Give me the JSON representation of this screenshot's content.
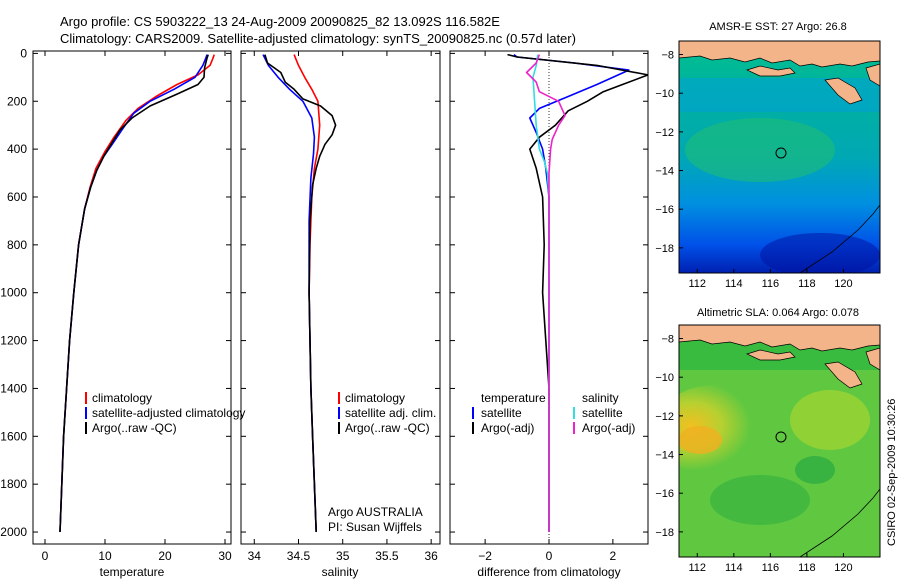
{
  "header": {
    "line1": "Argo profile: CS 5903222_13 24-Aug-2009 20090825_82 13.092S 116.582E",
    "line2": "Climatology: CARS2009. Satellite-adjusted climatology: synTS_20090825.nc (0.57d later)"
  },
  "footer": {
    "credit1": "Argo AUSTRALIA",
    "credit2": "PI: Susan Wijffels",
    "stamp": "CSIRO 02-Sep-2009 10:30:26"
  },
  "colors": {
    "red": "#ff0000",
    "blue": "#0000ff",
    "black": "#000000",
    "cyan": "#33dddd",
    "magenta": "#ee22cc",
    "land": "#f4b48a"
  },
  "chart_data": [
    {
      "id": "temperature",
      "type": "line",
      "xlabel": "temperature",
      "ylabel": "",
      "xlim": [
        -2,
        31
      ],
      "ylim": [
        2050,
        -10
      ],
      "xticks": [
        0,
        10,
        20,
        30
      ],
      "yticks": [
        0,
        200,
        400,
        600,
        800,
        1000,
        1200,
        1400,
        1600,
        1800,
        2000
      ],
      "legend": [
        "climatology",
        "satellite-adjusted climatology",
        "Argo(..raw -QC)"
      ],
      "series": [
        {
          "name": "climatology",
          "color": "red",
          "points": [
            [
              28.2,
              5
            ],
            [
              28,
              20
            ],
            [
              27.5,
              50
            ],
            [
              25.5,
              90
            ],
            [
              22,
              130
            ],
            [
              18.5,
              180
            ],
            [
              15.5,
              230
            ],
            [
              13.5,
              280
            ],
            [
              11.5,
              350
            ],
            [
              10,
              410
            ],
            [
              8.5,
              480
            ],
            [
              7.5,
              560
            ],
            [
              6.6,
              650
            ],
            [
              5.6,
              800
            ],
            [
              4.8,
              1000
            ],
            [
              4.1,
              1200
            ],
            [
              3.6,
              1400
            ],
            [
              3.1,
              1600
            ],
            [
              2.8,
              1800
            ],
            [
              2.5,
              2000
            ]
          ]
        },
        {
          "name": "satellite-adjusted climatology",
          "color": "blue",
          "points": [
            [
              27,
              5
            ],
            [
              26.8,
              20
            ],
            [
              26.3,
              50
            ],
            [
              25,
              100
            ],
            [
              21.5,
              150
            ],
            [
              17.5,
              200
            ],
            [
              14.8,
              250
            ],
            [
              12.8,
              320
            ],
            [
              11.2,
              380
            ],
            [
              9.8,
              430
            ],
            [
              8.6,
              490
            ],
            [
              7.6,
              560
            ],
            [
              6.6,
              650
            ],
            [
              5.6,
              800
            ],
            [
              4.8,
              1000
            ],
            [
              4.1,
              1200
            ],
            [
              3.6,
              1400
            ],
            [
              3.1,
              1600
            ],
            [
              2.8,
              1800
            ],
            [
              2.5,
              2000
            ]
          ]
        },
        {
          "name": "Argo(..raw -QC)",
          "color": "black",
          "points": [
            [
              27.2,
              5
            ],
            [
              27,
              20
            ],
            [
              26.6,
              60
            ],
            [
              26.5,
              100
            ],
            [
              25.5,
              130
            ],
            [
              22,
              170
            ],
            [
              17.5,
              220
            ],
            [
              14.5,
              270
            ],
            [
              12.5,
              320
            ],
            [
              11,
              380
            ],
            [
              9.8,
              430
            ],
            [
              8.6,
              490
            ],
            [
              7.6,
              560
            ],
            [
              6.6,
              650
            ],
            [
              5.6,
              800
            ],
            [
              4.8,
              1000
            ],
            [
              4.1,
              1200
            ],
            [
              3.6,
              1400
            ],
            [
              3.1,
              1600
            ],
            [
              2.8,
              1800
            ],
            [
              2.5,
              2000
            ]
          ]
        }
      ]
    },
    {
      "id": "salinity",
      "type": "line",
      "xlabel": "salinity",
      "ylabel": "",
      "xlim": [
        33.85,
        36.1
      ],
      "ylim": [
        2050,
        -10
      ],
      "xticks": [
        34,
        34.5,
        35,
        35.5,
        36
      ],
      "yticks": [
        0,
        200,
        400,
        600,
        800,
        1000,
        1200,
        1400,
        1600,
        1800,
        2000
      ],
      "legend": [
        "climatology",
        "satellite adj. clim.",
        "Argo(..raw -QC)"
      ],
      "series": [
        {
          "name": "climatology",
          "color": "red",
          "points": [
            [
              34.45,
              5
            ],
            [
              34.5,
              50
            ],
            [
              34.57,
              100
            ],
            [
              34.65,
              150
            ],
            [
              34.72,
              200
            ],
            [
              34.74,
              300
            ],
            [
              34.72,
              400
            ],
            [
              34.68,
              480
            ],
            [
              34.65,
              600
            ],
            [
              34.63,
              800
            ],
            [
              34.62,
              1000
            ],
            [
              34.63,
              1200
            ],
            [
              34.64,
              1400
            ],
            [
              34.66,
              1600
            ],
            [
              34.68,
              1800
            ],
            [
              34.7,
              2000
            ]
          ]
        },
        {
          "name": "satellite adj. clim.",
          "color": "blue",
          "points": [
            [
              34.1,
              5
            ],
            [
              34.16,
              50
            ],
            [
              34.27,
              100
            ],
            [
              34.4,
              150
            ],
            [
              34.55,
              200
            ],
            [
              34.65,
              270
            ],
            [
              34.68,
              350
            ],
            [
              34.67,
              420
            ],
            [
              34.64,
              520
            ],
            [
              34.62,
              700
            ],
            [
              34.62,
              1000
            ],
            [
              34.63,
              1200
            ],
            [
              34.64,
              1400
            ],
            [
              34.66,
              1600
            ],
            [
              34.68,
              1800
            ],
            [
              34.7,
              2000
            ]
          ]
        },
        {
          "name": "Argo(..raw -QC)",
          "color": "black",
          "points": [
            [
              34.12,
              5
            ],
            [
              34.15,
              40
            ],
            [
              34.3,
              80
            ],
            [
              34.35,
              120
            ],
            [
              34.45,
              150
            ],
            [
              34.55,
              190
            ],
            [
              34.75,
              220
            ],
            [
              34.88,
              260
            ],
            [
              34.92,
              300
            ],
            [
              34.88,
              340
            ],
            [
              34.8,
              380
            ],
            [
              34.74,
              430
            ],
            [
              34.7,
              480
            ],
            [
              34.66,
              550
            ],
            [
              34.63,
              700
            ],
            [
              34.62,
              1000
            ],
            [
              34.63,
              1200
            ],
            [
              34.64,
              1400
            ],
            [
              34.66,
              1600
            ],
            [
              34.68,
              1800
            ],
            [
              34.7,
              2000
            ]
          ]
        }
      ]
    },
    {
      "id": "difference",
      "type": "line",
      "xlabel": "difference from climatology",
      "ylabel": "",
      "xlim": [
        -3.1,
        3.1
      ],
      "ylim": [
        2050,
        -10
      ],
      "xticks": [
        -2,
        0,
        2
      ],
      "yticks": [
        0,
        200,
        400,
        600,
        800,
        1000,
        1200,
        1400,
        1600,
        1800,
        2000
      ],
      "legend_titles": [
        "temperature",
        "salinity"
      ],
      "legend": [
        "satellite",
        "Argo(-adj)",
        "satellite",
        "Argo(-adj)"
      ],
      "series": [
        {
          "name": "temperature satellite",
          "color": "blue",
          "points": [
            [
              -1.1,
              5
            ],
            [
              -1,
              15
            ],
            [
              0.8,
              40
            ],
            [
              2.5,
              70
            ],
            [
              1.5,
              130
            ],
            [
              0.6,
              180
            ],
            [
              -0.3,
              230
            ],
            [
              -0.6,
              270
            ],
            [
              -0.4,
              330
            ],
            [
              -0.2,
              400
            ],
            [
              -0.1,
              480
            ],
            [
              0,
              600
            ],
            [
              0,
              1000
            ],
            [
              0,
              2000
            ]
          ]
        },
        {
          "name": "temperature Argo(-adj)",
          "color": "black",
          "points": [
            [
              -1.3,
              5
            ],
            [
              -1,
              15
            ],
            [
              1.5,
              50
            ],
            [
              3.1,
              90
            ],
            [
              2.3,
              130
            ],
            [
              1.7,
              160
            ],
            [
              1.2,
              200
            ],
            [
              0.6,
              240
            ],
            [
              0.2,
              300
            ],
            [
              -0.3,
              350
            ],
            [
              -0.6,
              400
            ],
            [
              -0.4,
              480
            ],
            [
              -0.2,
              600
            ],
            [
              -0.15,
              800
            ],
            [
              -0.2,
              1000
            ],
            [
              -0.1,
              1200
            ],
            [
              0,
              1400
            ],
            [
              0,
              2000
            ]
          ]
        },
        {
          "name": "salinity satellite",
          "color": "cyan",
          "points": [
            [
              -0.35,
              5
            ],
            [
              -0.4,
              50
            ],
            [
              -0.5,
              100
            ],
            [
              -0.45,
              200
            ],
            [
              -0.4,
              300
            ],
            [
              -0.3,
              400
            ],
            [
              -0.15,
              450
            ],
            [
              -0.05,
              500
            ],
            [
              0,
              600
            ],
            [
              0,
              800
            ],
            [
              0,
              1000
            ],
            [
              0,
              1200
            ],
            [
              0,
              1400
            ],
            [
              0,
              1600
            ],
            [
              0,
              1800
            ],
            [
              0,
              2000
            ]
          ]
        },
        {
          "name": "salinity Argo(-adj)",
          "color": "magenta",
          "points": [
            [
              -0.3,
              5
            ],
            [
              -0.4,
              40
            ],
            [
              -0.7,
              80
            ],
            [
              -0.4,
              120
            ],
            [
              -0.3,
              160
            ],
            [
              0.3,
              200
            ],
            [
              0.5,
              260
            ],
            [
              0.3,
              300
            ],
            [
              0.1,
              360
            ],
            [
              0.05,
              400
            ],
            [
              0,
              500
            ],
            [
              0,
              700
            ],
            [
              0,
              2000
            ]
          ]
        }
      ]
    },
    {
      "id": "sst-map",
      "type": "heatmap",
      "title": "AMSR-E SST: 27 Argo: 26.8",
      "xlim": [
        111,
        122
      ],
      "ylim": [
        -19.3,
        -7.3
      ],
      "xticks": [
        112,
        114,
        116,
        118,
        120
      ],
      "yticks": [
        -8,
        -10,
        -12,
        -14,
        -16,
        -18
      ],
      "marker": [
        116.582,
        -13.092
      ]
    },
    {
      "id": "sla-map",
      "type": "heatmap",
      "title": "Altimetric SLA: 0.064 Argo: 0.078",
      "xlim": [
        111,
        122
      ],
      "ylim": [
        -19.3,
        -7.3
      ],
      "xticks": [
        112,
        114,
        116,
        118,
        120
      ],
      "yticks": [
        -8,
        -10,
        -12,
        -14,
        -16,
        -18
      ],
      "marker": [
        116.582,
        -13.092
      ]
    }
  ]
}
